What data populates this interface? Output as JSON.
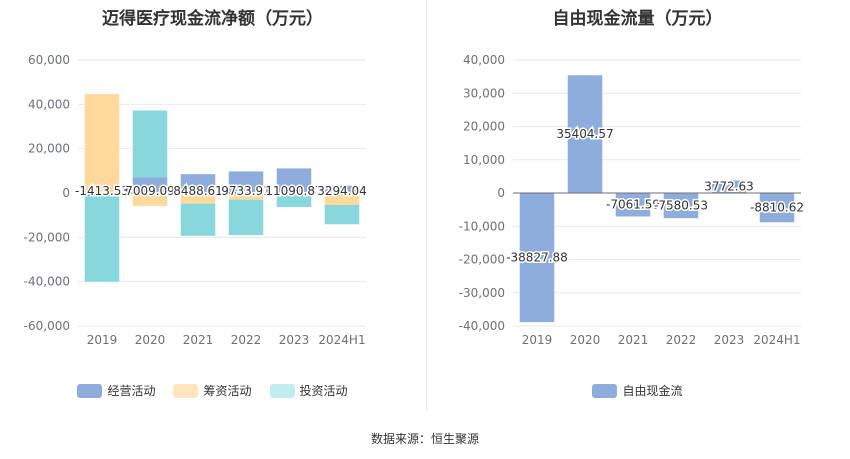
{
  "source": "数据来源：恒生聚源",
  "chart_data": [
    {
      "type": "bar",
      "stacked": true,
      "title": "迈得医疗现金流净额（万元）",
      "categories": [
        "2019",
        "2020",
        "2021",
        "2022",
        "2023",
        "2024H1"
      ],
      "ylim": [
        -60000,
        60000
      ],
      "yticks": [
        -60000,
        -40000,
        -20000,
        0,
        20000,
        40000,
        60000
      ],
      "ytick_labels": [
        "-60,000",
        "-40,000",
        "-20,000",
        "0",
        "20,000",
        "40,000",
        "60,000"
      ],
      "grid": true,
      "legend_position": "bottom",
      "series": [
        {
          "name": "经营活动",
          "color": "#8eacdc",
          "values": [
            -1413.53,
            7009.09,
            8488.61,
            9733.91,
            11090.87,
            3294.04
          ]
        },
        {
          "name": "筹资活动",
          "color": "#ffd89b",
          "values": [
            44600,
            -5800,
            -4800,
            -3000,
            -1200,
            -5400
          ]
        },
        {
          "name": "投资活动",
          "color": "#88d7dc",
          "values": [
            -38600,
            30200,
            -14500,
            -16000,
            -5100,
            -8700
          ]
        }
      ],
      "data_labels": [
        "-1413.53",
        "7009.09",
        "8488.61",
        "9733.91",
        "11090.87",
        "3294.04"
      ]
    },
    {
      "type": "bar",
      "title": "自由现金流量（万元）",
      "categories": [
        "2019",
        "2020",
        "2021",
        "2022",
        "2023",
        "2024H1"
      ],
      "ylim": [
        -40000,
        40000
      ],
      "yticks": [
        -40000,
        -30000,
        -20000,
        -10000,
        0,
        10000,
        20000,
        30000,
        40000
      ],
      "ytick_labels": [
        "-40,000",
        "-30,000",
        "-20,000",
        "-10,000",
        "0",
        "10,000",
        "20,000",
        "30,000",
        "40,000"
      ],
      "grid": true,
      "legend_position": "bottom",
      "series": [
        {
          "name": "自由现金流",
          "color": "#8eacdc",
          "values": [
            -38827.88,
            35404.57,
            -7061.59,
            -7580.53,
            3772.63,
            -8810.62
          ]
        }
      ],
      "data_labels": [
        "-38827.88",
        "35404.57",
        "-7061.59",
        "-7580.53",
        "3772.63",
        "-8810.62"
      ]
    }
  ]
}
